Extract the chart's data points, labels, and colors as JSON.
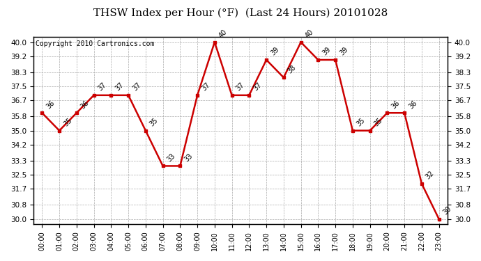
{
  "title": "THSW Index per Hour (°F)  (Last 24 Hours) 20101028",
  "copyright": "Copyright 2010 Cartronics.com",
  "hours": [
    "00:00",
    "01:00",
    "02:00",
    "03:00",
    "04:00",
    "05:00",
    "06:00",
    "07:00",
    "08:00",
    "09:00",
    "10:00",
    "11:00",
    "12:00",
    "13:00",
    "14:00",
    "15:00",
    "16:00",
    "17:00",
    "18:00",
    "19:00",
    "20:00",
    "21:00",
    "22:00",
    "23:00"
  ],
  "values": [
    36,
    35,
    36,
    37,
    37,
    37,
    35,
    33,
    33,
    37,
    40,
    37,
    37,
    39,
    38,
    40,
    39,
    39,
    35,
    35,
    36,
    36,
    32,
    30
  ],
  "yticks": [
    30.0,
    30.8,
    31.7,
    32.5,
    33.3,
    34.2,
    35.0,
    35.8,
    36.7,
    37.5,
    38.3,
    39.2,
    40.0
  ],
  "ylim": [
    29.7,
    40.3
  ],
  "line_color": "#cc0000",
  "marker_color": "#cc0000",
  "bg_color": "#ffffff",
  "plot_bg_color": "#ffffff",
  "grid_color": "#aaaaaa",
  "title_fontsize": 11,
  "copyright_fontsize": 7,
  "label_fontsize": 7
}
